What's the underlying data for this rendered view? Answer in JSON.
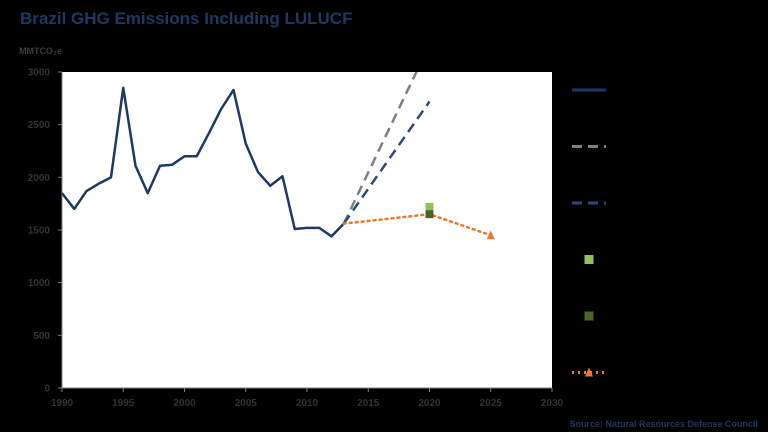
{
  "header": {
    "title": "Brazil GHG Emissions Including LULUCF",
    "y_unit": "MMTCO₂e"
  },
  "footer": {
    "source": "Source: Natural Resources Defense Council"
  },
  "colors": {
    "historical": "#1f3864",
    "scenario_grey": "#7f7f7f",
    "scenario_blue": "#2e4a7d",
    "light_green": "#92c060",
    "dark_green": "#4f6228",
    "target_orange": "#e8792e",
    "plot_bg": "#ffffff",
    "page_bg": "#000000"
  },
  "chart_data": {
    "type": "line",
    "title": "Brazil GHG Emissions Including LULUCF",
    "ylabel": "MMTCO₂e",
    "xlabel": "",
    "xlim": [
      1990,
      2030
    ],
    "ylim": [
      0,
      3000
    ],
    "x_ticks": [
      1990,
      1995,
      2000,
      2005,
      2010,
      2015,
      2020,
      2025,
      2030
    ],
    "y_ticks": [
      0,
      500,
      1000,
      1500,
      2000,
      2500,
      3000
    ],
    "grid": false,
    "legend_position": "right",
    "series": [
      {
        "key": "historical",
        "style": "solid",
        "points": [
          [
            1990,
            1850
          ],
          [
            1991,
            1700
          ],
          [
            1992,
            1870
          ],
          [
            1993,
            1940
          ],
          [
            1994,
            2000
          ],
          [
            1995,
            2850
          ],
          [
            1996,
            2110
          ],
          [
            1997,
            1850
          ],
          [
            1998,
            2110
          ],
          [
            1999,
            2120
          ],
          [
            2000,
            2200
          ],
          [
            2001,
            2200
          ],
          [
            2002,
            2420
          ],
          [
            2003,
            2650
          ],
          [
            2004,
            2830
          ],
          [
            2005,
            2320
          ],
          [
            2006,
            2050
          ],
          [
            2007,
            1920
          ],
          [
            2008,
            2010
          ],
          [
            2009,
            1510
          ],
          [
            2010,
            1520
          ],
          [
            2011,
            1520
          ],
          [
            2012,
            1440
          ],
          [
            2013,
            1560
          ]
        ]
      },
      {
        "key": "scenario_grey",
        "style": "dashed",
        "points": [
          [
            2013,
            1560
          ],
          [
            2020,
            3260
          ]
        ]
      },
      {
        "key": "scenario_blue",
        "style": "dashed",
        "points": [
          [
            2013,
            1560
          ],
          [
            2020,
            2720
          ]
        ]
      },
      {
        "key": "target_orange",
        "style": "dotted",
        "marker": "triangle",
        "points": [
          [
            2013,
            1560
          ],
          [
            2020,
            1650
          ],
          [
            2025,
            1450
          ]
        ]
      },
      {
        "key": "light_green",
        "style": "marker",
        "marker": "square",
        "points": [
          [
            2020,
            1720
          ]
        ]
      },
      {
        "key": "dark_green",
        "style": "marker",
        "marker": "square",
        "points": [
          [
            2020,
            1650
          ]
        ]
      }
    ],
    "legend": [
      {
        "key": "historical",
        "type": "line",
        "style": "solid"
      },
      {
        "key": "scenario_grey",
        "type": "line",
        "style": "dashed"
      },
      {
        "key": "scenario_blue",
        "type": "line",
        "style": "dashed"
      },
      {
        "key": "light_green",
        "type": "marker",
        "marker": "square"
      },
      {
        "key": "dark_green",
        "type": "marker",
        "marker": "square"
      },
      {
        "key": "target_orange",
        "type": "line-marker",
        "style": "dotted",
        "marker": "triangle"
      }
    ]
  }
}
